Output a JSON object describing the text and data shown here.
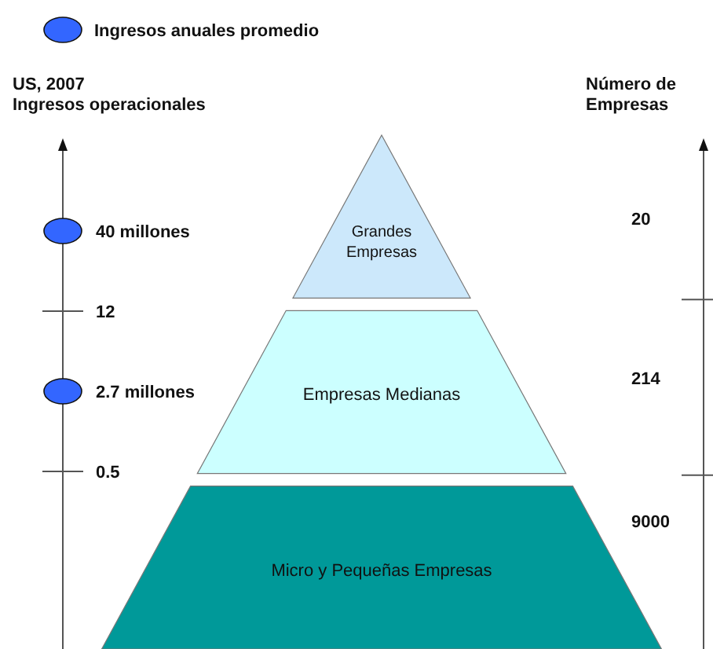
{
  "chart_data": {
    "type": "other",
    "legend_title": "Ingresos anuales promedio",
    "ylabel": "US, 2007\nIngresos operacionales",
    "y2label": "Número de\nEmpresas",
    "categories": [
      "Grandes\nEmpresas",
      "Empresas Medianas",
      "Micro y Pequeñas Empresas"
    ],
    "values": [
      20,
      214,
      9000
    ],
    "colors": [
      "#cce8fb",
      "#ccffff",
      "#009999"
    ],
    "data_labels": true,
    "annotations": [
      "40 millones",
      "12",
      "2.7 millones",
      "0.5"
    ]
  }
}
